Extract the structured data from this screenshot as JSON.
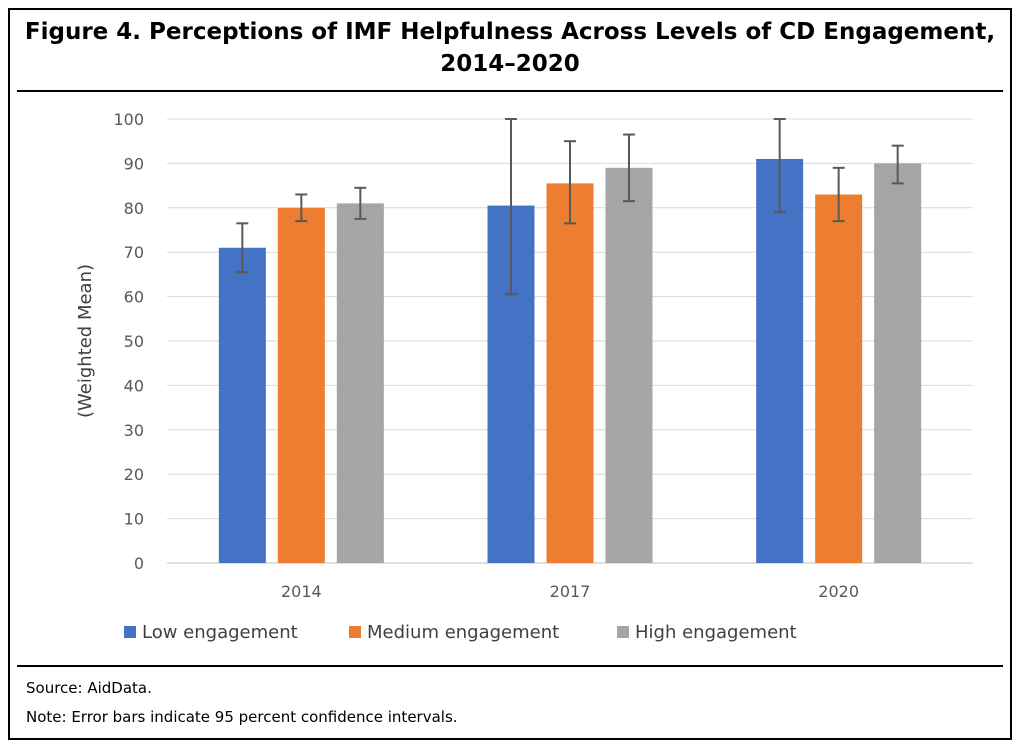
{
  "figure": {
    "title_line1": "Figure 4. Perceptions of IMF Helpfulness Across Levels of CD Engagement,",
    "title_line2": "2014–2020",
    "source": "Source: AidData.",
    "note": "Note: Error bars indicate 95 percent confidence intervals."
  },
  "chart_data": {
    "type": "bar",
    "title": "",
    "xlabel": "",
    "ylabel": "(Weighted Mean)",
    "ylim": [
      0,
      100
    ],
    "yticks": [
      0,
      10,
      20,
      30,
      40,
      50,
      60,
      70,
      80,
      90,
      100
    ],
    "grid": true,
    "legend_position": "bottom",
    "categories": [
      "2014",
      "2017",
      "2020"
    ],
    "series": [
      {
        "name": "Low engagement",
        "color": "#4472C4",
        "values": [
          71,
          80.5,
          91
        ],
        "error_low": [
          65.5,
          60.5,
          79
        ],
        "error_high": [
          76.5,
          100,
          100
        ]
      },
      {
        "name": "Medium engagement",
        "color": "#ED7D31",
        "values": [
          80,
          85.5,
          83
        ],
        "error_low": [
          77,
          76.5,
          77
        ],
        "error_high": [
          83,
          95,
          89
        ]
      },
      {
        "name": "High engagement",
        "color": "#A5A5A5",
        "values": [
          81,
          89,
          90
        ],
        "error_low": [
          77.5,
          81.5,
          85.5
        ],
        "error_high": [
          84.5,
          96.5,
          94
        ]
      }
    ]
  }
}
